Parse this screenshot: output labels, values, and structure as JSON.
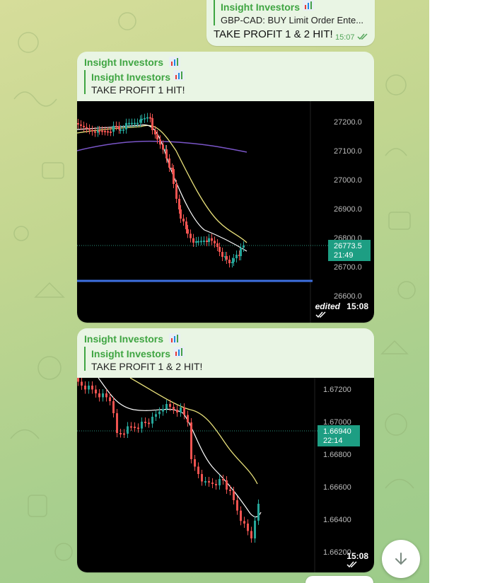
{
  "messages": [
    {
      "reply_sender": "Insight Investors",
      "reply_text": "GBP-CAD: BUY Limit Order Ente...",
      "text": "TAKE PROFIT 1 & 2 HIT!",
      "time": "15:07"
    },
    {
      "sender": "Insight Investors",
      "reply_sender": "Insight Investors",
      "reply_text": "TAKE PROFIT 1 HIT!",
      "edited_label": "edited",
      "time": "15:08",
      "chart": {
        "y_ticks": [
          "27200.0",
          "27100.0",
          "27000.0",
          "26900.0",
          "26800.0",
          "26700.0",
          "26600.0"
        ],
        "price_tag": "26773.5",
        "countdown": "21:49"
      }
    },
    {
      "sender": "Insight Investors",
      "reply_sender": "Insight Investors",
      "reply_text": "TAKE PROFIT 1 & 2 HIT!",
      "time": "15:08",
      "chart": {
        "y_ticks": [
          "1.67200",
          "1.67000",
          "1.66800",
          "1.66600",
          "1.66400",
          "1.66200"
        ],
        "price_tag": "1.66940",
        "countdown": "22:14"
      }
    }
  ],
  "colors": {
    "sender": "#3fa542",
    "bubble": "#e9f5e4",
    "bull": "#26a69a",
    "bear": "#ef5350",
    "support_line": "#3d6fe0"
  },
  "icons": {
    "chart_emoji": "bar-chart-icon",
    "read_status": "double-check-icon",
    "scroll_down": "arrow-down-icon"
  }
}
